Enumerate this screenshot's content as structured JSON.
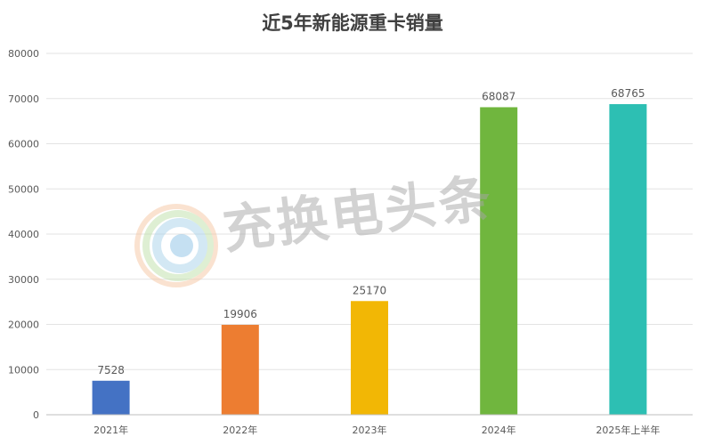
{
  "watermark": {
    "text": "充换电头条",
    "logo": "charging-logo"
  },
  "colors": {
    "grid": "#e3e3e3",
    "axis": "#bfbfbf",
    "text": "#595959",
    "title": "#404040"
  },
  "chart_data": {
    "type": "bar",
    "title": "近5年新能源重卡销量",
    "xlabel": "",
    "ylabel": "",
    "categories": [
      "2021年",
      "2022年",
      "2023年",
      "2024年",
      "2025年上半年"
    ],
    "values": [
      7528,
      19906,
      25170,
      68087,
      68765
    ],
    "bar_colors": [
      "#4472c4",
      "#ed7d31",
      "#f2b705",
      "#70b63e",
      "#2dbfb3"
    ],
    "ylim": [
      0,
      80000
    ],
    "yticks": [
      0,
      10000,
      20000,
      30000,
      40000,
      50000,
      60000,
      70000,
      80000
    ],
    "grid": true,
    "legend": "none",
    "data_labels": true
  }
}
